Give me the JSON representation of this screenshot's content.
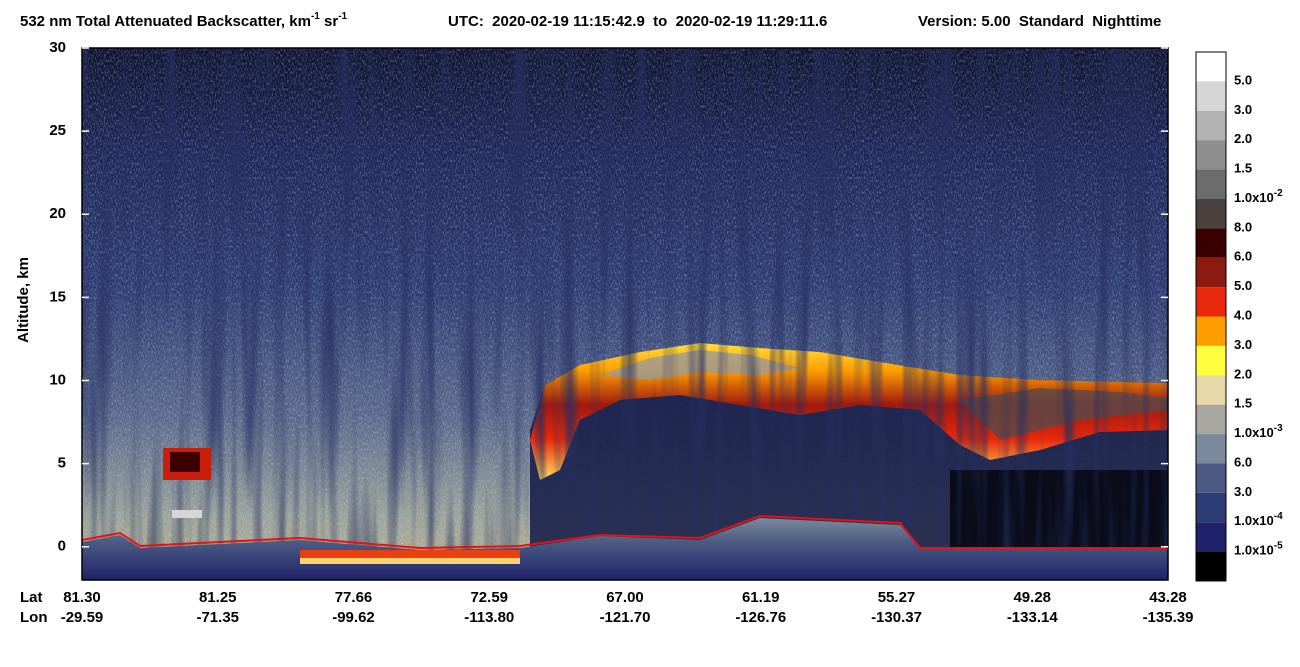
{
  "chart_data": {
    "type": "curtain",
    "title_parts": [
      "532 nm Total Attenuated Backscatter, km",
      "-1",
      " sr",
      "-1"
    ],
    "utc": "UTC:  2020-02-19 11:15:42.9  to  2020-02-19 11:29:11.6",
    "version": "Version: 5.00  Standard  Nighttime",
    "ylabel": "Altitude, km",
    "ylim": [
      -2,
      30
    ],
    "yticks": [
      0,
      5,
      10,
      15,
      20,
      25,
      30
    ],
    "x_rows": [
      {
        "label": "Lat",
        "values": [
          "81.30",
          "81.25",
          "77.66",
          "72.59",
          "67.00",
          "61.19",
          "55.27",
          "49.28",
          "43.28"
        ]
      },
      {
        "label": "Lon",
        "values": [
          "-29.59",
          "-71.35",
          "-99.62",
          "-113.80",
          "-121.70",
          "-126.76",
          "-130.37",
          "-133.14",
          "-135.39"
        ]
      }
    ],
    "colorbar": {
      "colors": [
        "#ffffff",
        "#d6d6d6",
        "#b2b2b2",
        "#8e8e8e",
        "#6c6c6c",
        "#4a403d",
        "#3a0000",
        "#8b1a10",
        "#e8280a",
        "#ff9e00",
        "#ffff40",
        "#e8d8a8",
        "#a8a8a0",
        "#7a8a9c",
        "#4a5a82",
        "#2c3c74",
        "#1e226a",
        "#000000"
      ],
      "labels": [
        {
          "text": "5.0"
        },
        {
          "text": "3.0"
        },
        {
          "text": "2.0"
        },
        {
          "text": "1.5"
        },
        {
          "text": "1.0x10",
          "sup": "-2"
        },
        {
          "text": "8.0"
        },
        {
          "text": "6.0"
        },
        {
          "text": "5.0"
        },
        {
          "text": "4.0"
        },
        {
          "text": "3.0"
        },
        {
          "text": "2.0"
        },
        {
          "text": "1.5"
        },
        {
          "text": "1.0x10",
          "sup": "-3"
        },
        {
          "text": "6.0"
        },
        {
          "text": "3.0"
        },
        {
          "text": "1.0x10",
          "sup": "-4"
        },
        {
          "text": "1.0x10",
          "sup": "-5"
        }
      ]
    }
  }
}
